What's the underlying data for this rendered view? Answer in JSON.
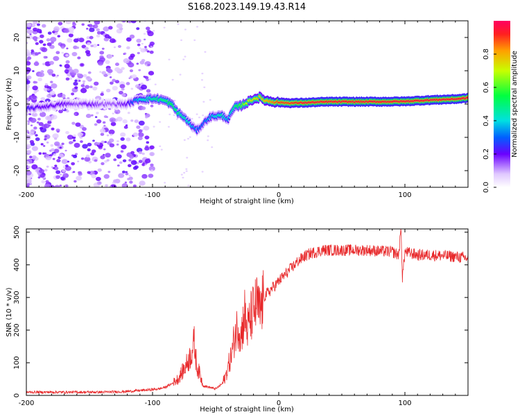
{
  "title": "S168.2023.149.19.43.R14",
  "chart_data": [
    {
      "type": "heatmap",
      "xlabel": "Height of straight line (km)",
      "ylabel": "Frequency (Hz)",
      "xlim": [
        -200,
        150
      ],
      "ylim": [
        -25,
        25
      ],
      "x_ticks": [
        -200,
        -100,
        0,
        100
      ],
      "x_tick_labels": [
        "-200",
        "-100",
        "0",
        "100"
      ],
      "y_ticks": [
        -20,
        -10,
        0,
        10,
        20
      ],
      "y_tick_labels": [
        "-20",
        "-10",
        "0",
        "10",
        "20"
      ],
      "colorbar": {
        "label": "Normalized spectral amplitude",
        "ticks": [
          0.0,
          0.2,
          0.4,
          0.6,
          0.8
        ],
        "tick_labels": [
          "0.0",
          "0.2",
          "0.4",
          "0.6",
          "0.8"
        ],
        "range": [
          0,
          1
        ]
      },
      "ridge": {
        "x": [
          -200,
          -190,
          -180,
          -170,
          -160,
          -150,
          -140,
          -130,
          -120,
          -110,
          -100,
          -95,
          -90,
          -85,
          -80,
          -75,
          -70,
          -65,
          -60,
          -55,
          -50,
          -45,
          -40,
          -35,
          -30,
          -25,
          -20,
          -15,
          -10,
          -5,
          0,
          10,
          20,
          40,
          60,
          80,
          100,
          120,
          140,
          150
        ],
        "freq": [
          -1.5,
          -1,
          -0.5,
          0,
          0,
          0,
          0,
          0,
          0,
          1.5,
          1.6,
          1.5,
          1.0,
          0.0,
          -2.5,
          -4.0,
          -6.0,
          -8.0,
          -6.0,
          -4.0,
          -3.5,
          -3.5,
          -4.5,
          -1.0,
          -0.5,
          0.5,
          1.5,
          2.0,
          1.0,
          0.8,
          0.5,
          0.3,
          0.4,
          0.7,
          0.7,
          0.7,
          0.8,
          1.2,
          1.5,
          1.8
        ],
        "amplitude": [
          0.25,
          0.2,
          0.2,
          0.2,
          0.15,
          0.2,
          0.15,
          0.15,
          0.2,
          0.4,
          0.45,
          0.5,
          0.5,
          0.55,
          0.5,
          0.45,
          0.4,
          0.3,
          0.3,
          0.35,
          0.4,
          0.45,
          0.35,
          0.5,
          0.6,
          0.7,
          0.75,
          0.75,
          0.8,
          0.85,
          0.9,
          0.9,
          0.95,
          0.95,
          0.95,
          0.95,
          0.95,
          0.95,
          0.95,
          0.95
        ]
      }
    },
    {
      "type": "line",
      "xlabel": "Height of straight line (km)",
      "ylabel": "SNR (10 * v/v)",
      "xlim": [
        -200,
        150
      ],
      "ylim": [
        0,
        510
      ],
      "x_ticks": [
        -200,
        -100,
        0,
        100
      ],
      "x_tick_labels": [
        "-200",
        "-100",
        "0",
        "100"
      ],
      "y_ticks": [
        0,
        100,
        200,
        300,
        400,
        500
      ],
      "y_tick_labels": [
        "0",
        "100",
        "200",
        "300",
        "400",
        "500"
      ],
      "color": "#e8282a",
      "series": [
        {
          "name": "SNR",
          "x": [
            -200,
            -180,
            -160,
            -140,
            -120,
            -110,
            -100,
            -95,
            -90,
            -85,
            -80,
            -75,
            -70,
            -67,
            -65,
            -62,
            -60,
            -55,
            -50,
            -45,
            -42,
            -40,
            -37,
            -35,
            -32,
            -30,
            -27,
            -25,
            -22,
            -20,
            -17,
            -15,
            -12,
            -10,
            -7,
            -5,
            -2,
            0,
            5,
            10,
            15,
            20,
            25,
            30,
            35,
            40,
            50,
            60,
            70,
            80,
            90,
            95,
            97,
            98,
            100,
            105,
            110,
            120,
            130,
            140,
            150
          ],
          "y": [
            10,
            10,
            10,
            10,
            12,
            15,
            18,
            20,
            25,
            35,
            50,
            80,
            120,
            160,
            90,
            60,
            30,
            25,
            20,
            35,
            60,
            90,
            130,
            180,
            220,
            180,
            250,
            200,
            240,
            260,
            280,
            250,
            300,
            310,
            320,
            330,
            340,
            350,
            370,
            390,
            410,
            425,
            435,
            440,
            445,
            445,
            445,
            445,
            445,
            442,
            440,
            430,
            510,
            360,
            440,
            435,
            430,
            430,
            428,
            425,
            420
          ]
        }
      ]
    }
  ]
}
